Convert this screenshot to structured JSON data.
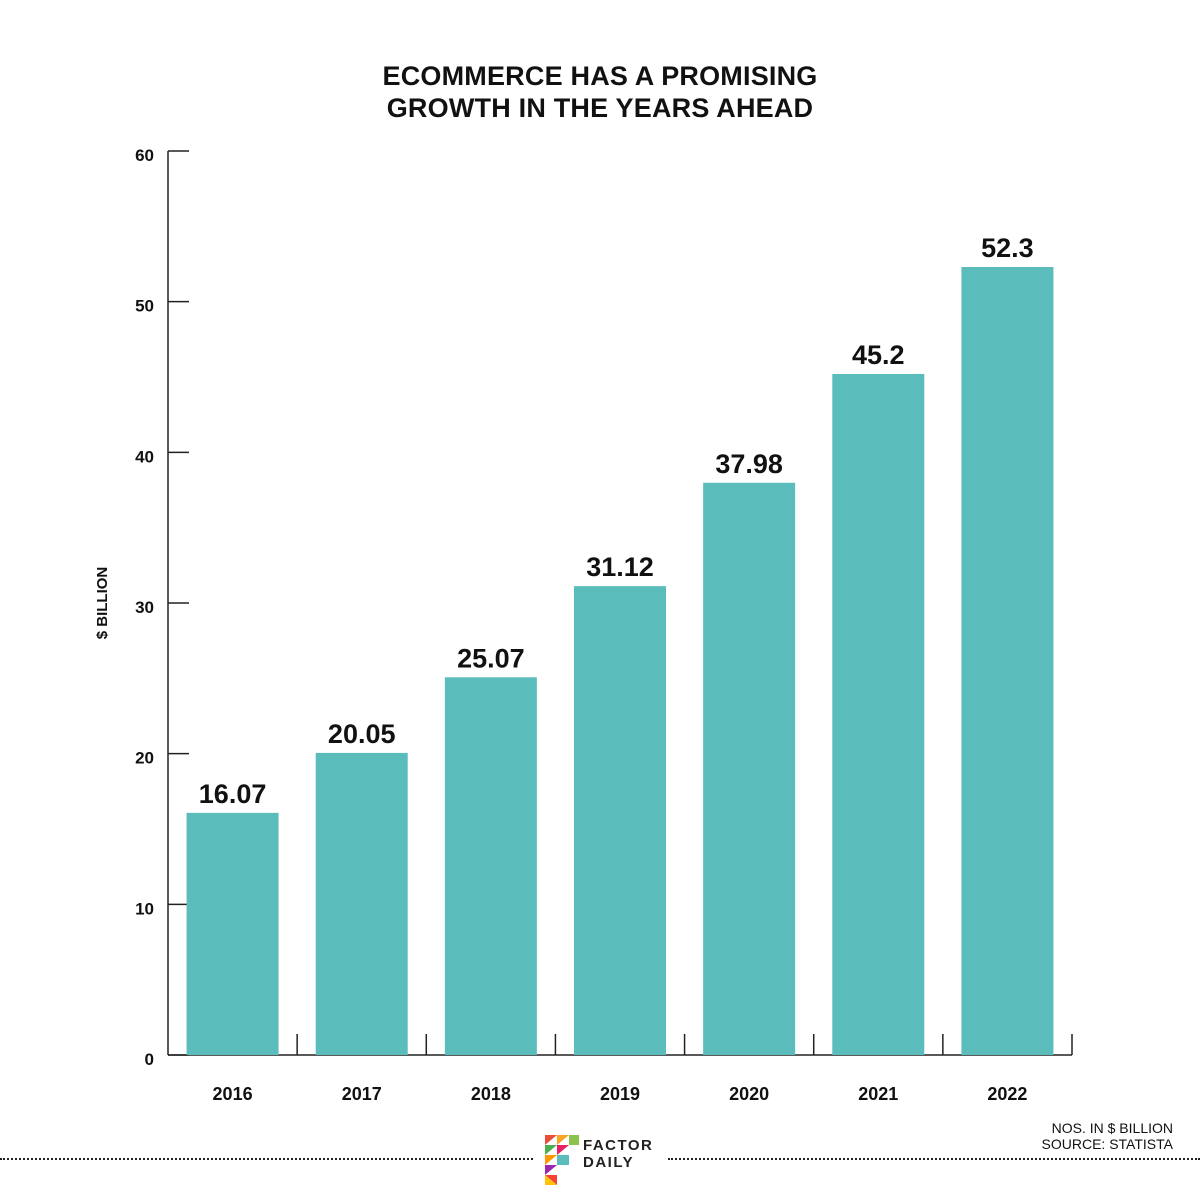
{
  "title_lines": [
    "ECOMMERCE HAS A PROMISING",
    "GROWTH IN THE YEARS AHEAD"
  ],
  "notes": {
    "units": "NOS. IN $ BILLION",
    "source": "SOURCE: STATISTA"
  },
  "brand": {
    "line1": "FACTOR",
    "line2": "DAILY"
  },
  "colors": {
    "bar": "#5bbcbc",
    "axis": "#222222",
    "text": "#111111"
  },
  "chart_data": {
    "type": "bar",
    "title": "ECOMMERCE HAS A PROMISING GROWTH IN THE YEARS AHEAD",
    "xlabel": "",
    "ylabel": "$ BILLION",
    "categories": [
      "2016",
      "2017",
      "2018",
      "2019",
      "2020",
      "2021",
      "2022"
    ],
    "values": [
      16.07,
      20.05,
      25.07,
      31.12,
      37.98,
      45.2,
      52.3
    ],
    "value_labels": [
      "16.07",
      "20.05",
      "25.07",
      "31.12",
      "37.98",
      "45.2",
      "52.3"
    ],
    "ylim": [
      0,
      60
    ],
    "yticks": [
      0,
      10,
      20,
      30,
      40,
      50,
      60
    ],
    "grid": false,
    "legend": "none"
  }
}
